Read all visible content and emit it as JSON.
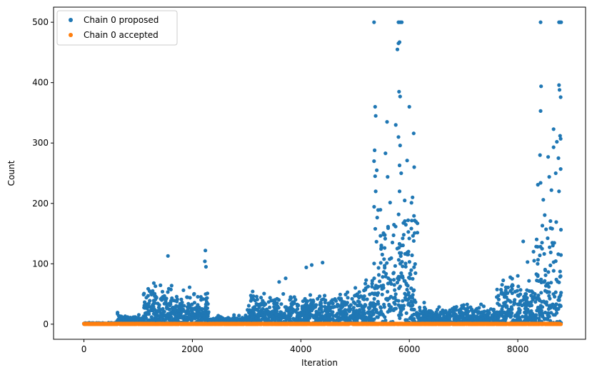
{
  "chart_data": {
    "type": "scatter",
    "title": "",
    "xlabel": "Iteration",
    "ylabel": "Count",
    "xlim": [
      -560,
      9250
    ],
    "ylim": [
      -25,
      525
    ],
    "xticks": [
      0,
      2000,
      4000,
      6000,
      8000
    ],
    "yticks": [
      0,
      100,
      200,
      300,
      400,
      500
    ],
    "grid": false,
    "legend_position": "top-left",
    "x_max_iteration": 8800,
    "series": [
      {
        "name": "Chain 0 proposed",
        "color": "#1f77b4",
        "marker": "circle"
      },
      {
        "name": "Chain 0 accepted",
        "color": "#ff7f0e",
        "marker": "circle"
      }
    ],
    "baseline_level": {
      "description_segments": [
        {
          "x_start": 0,
          "x_end": 600,
          "proposed_typical": 1,
          "proposed_max": 2
        },
        {
          "x_start": 600,
          "x_end": 1100,
          "proposed_typical": 5,
          "proposed_max": 15
        },
        {
          "x_start": 1100,
          "x_end": 1700,
          "proposed_typical": 18,
          "proposed_max": 60
        },
        {
          "x_start": 1700,
          "x_end": 2300,
          "proposed_typical": 18,
          "proposed_max": 50
        },
        {
          "x_start": 2300,
          "x_end": 3000,
          "proposed_typical": 5,
          "proposed_max": 12
        },
        {
          "x_start": 3000,
          "x_end": 5000,
          "proposed_typical": 15,
          "proposed_max": 50
        },
        {
          "x_start": 5000,
          "x_end": 5350,
          "proposed_typical": 20,
          "proposed_max": 70
        },
        {
          "x_start": 5350,
          "x_end": 6150,
          "proposed_typical": 40,
          "proposed_max": 200
        },
        {
          "x_start": 6150,
          "x_end": 7600,
          "proposed_typical": 8,
          "proposed_max": 30
        },
        {
          "x_start": 7600,
          "x_end": 8300,
          "proposed_typical": 20,
          "proposed_max": 70
        },
        {
          "x_start": 8300,
          "x_end": 8800,
          "proposed_typical": 40,
          "proposed_max": 200
        }
      ]
    },
    "notable_points_proposed": [
      [
        1550,
        113
      ],
      [
        2240,
        122
      ],
      [
        2230,
        104
      ],
      [
        2250,
        95
      ],
      [
        1100,
        49
      ],
      [
        4100,
        94
      ],
      [
        4200,
        98
      ],
      [
        4400,
        102
      ],
      [
        3600,
        70
      ],
      [
        3720,
        76
      ],
      [
        5350,
        500
      ],
      [
        5800,
        500
      ],
      [
        5830,
        500
      ],
      [
        5860,
        500
      ],
      [
        5780,
        455
      ],
      [
        5800,
        465
      ],
      [
        5820,
        467
      ],
      [
        5810,
        385
      ],
      [
        5830,
        377
      ],
      [
        5370,
        360
      ],
      [
        5380,
        345
      ],
      [
        5590,
        335
      ],
      [
        5750,
        330
      ],
      [
        6000,
        360
      ],
      [
        6080,
        316
      ],
      [
        5360,
        288
      ],
      [
        5560,
        283
      ],
      [
        5800,
        310
      ],
      [
        5830,
        296
      ],
      [
        5350,
        270
      ],
      [
        5400,
        255
      ],
      [
        5960,
        271
      ],
      [
        6090,
        260
      ],
      [
        5370,
        245
      ],
      [
        5600,
        244
      ],
      [
        5820,
        263
      ],
      [
        5850,
        250
      ],
      [
        5380,
        220
      ],
      [
        5820,
        220
      ],
      [
        6060,
        210
      ],
      [
        8420,
        500
      ],
      [
        8760,
        500
      ],
      [
        8780,
        500
      ],
      [
        8800,
        500
      ],
      [
        8430,
        394
      ],
      [
        8760,
        396
      ],
      [
        8770,
        388
      ],
      [
        8790,
        376
      ],
      [
        8420,
        353
      ],
      [
        8660,
        323
      ],
      [
        8780,
        312
      ],
      [
        8790,
        307
      ],
      [
        8720,
        302
      ],
      [
        8660,
        293
      ],
      [
        8560,
        277
      ],
      [
        8410,
        280
      ],
      [
        8750,
        275
      ],
      [
        8790,
        257
      ],
      [
        8700,
        250
      ],
      [
        8580,
        244
      ],
      [
        8420,
        234
      ],
      [
        8370,
        231
      ],
      [
        8620,
        222
      ],
      [
        8760,
        220
      ],
      [
        8470,
        206
      ],
      [
        8100,
        137
      ],
      [
        8180,
        103
      ],
      [
        8290,
        120
      ],
      [
        8000,
        80
      ],
      [
        7900,
        65
      ]
    ],
    "accepted_values": "all points at 0 to 1 across iterations 0–8800"
  }
}
